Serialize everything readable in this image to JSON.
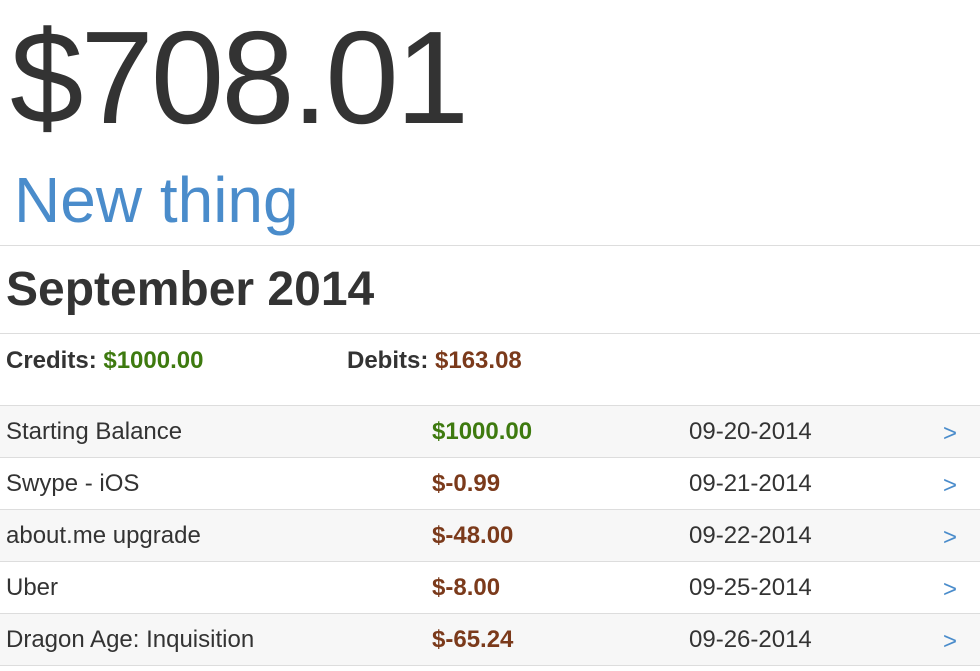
{
  "balance": "$708.01",
  "new_thing_label": "New thing",
  "month": {
    "title": "September 2014",
    "credits_label": "Credits:",
    "credits_value": "$1000.00",
    "debits_label": "Debits:",
    "debits_value": "$163.08"
  },
  "colors": {
    "credit": "#3e7a0f",
    "debit": "#7b3a1b",
    "link": "#4a8ccb"
  },
  "transactions": [
    {
      "name": "Starting Balance",
      "amount": "$1000.00",
      "type": "credit",
      "date": "09-20-2014",
      "chevron": ">"
    },
    {
      "name": "Swype - iOS",
      "amount": "$-0.99",
      "type": "debit",
      "date": "09-21-2014",
      "chevron": ">"
    },
    {
      "name": "about.me upgrade",
      "amount": "$-48.00",
      "type": "debit",
      "date": "09-22-2014",
      "chevron": ">"
    },
    {
      "name": "Uber",
      "amount": "$-8.00",
      "type": "debit",
      "date": "09-25-2014",
      "chevron": ">"
    },
    {
      "name": "Dragon Age: Inquisition",
      "amount": "$-65.24",
      "type": "debit",
      "date": "09-26-2014",
      "chevron": ">"
    }
  ]
}
